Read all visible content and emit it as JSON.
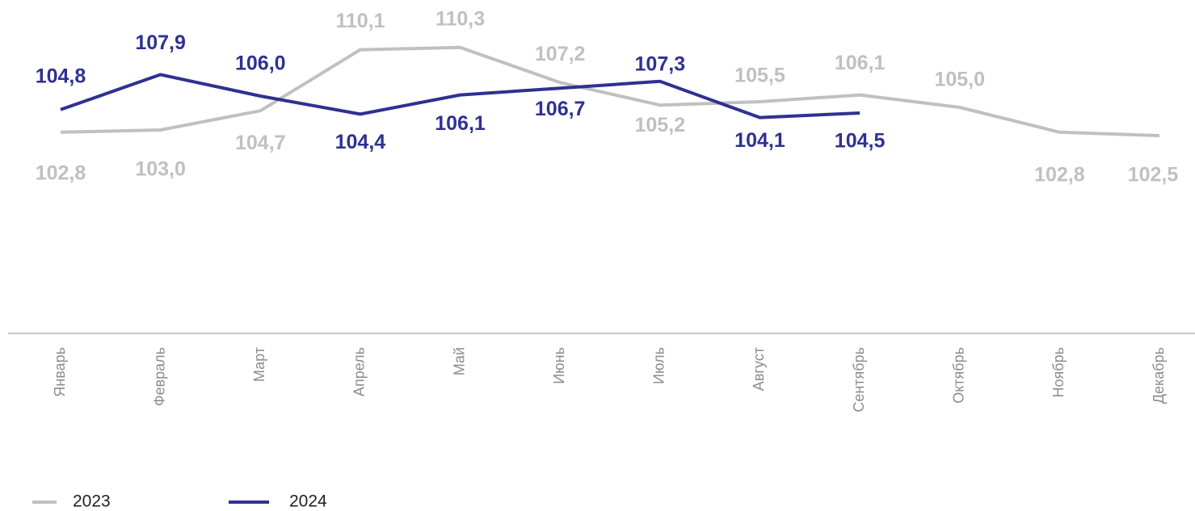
{
  "chart_data": {
    "type": "line",
    "categories": [
      "Январь",
      "Февраль",
      "Март",
      "Апрель",
      "Май",
      "Июнь",
      "Июль",
      "Август",
      "Сентябрь",
      "Октябрь",
      "Ноябрь",
      "Декабрь"
    ],
    "series": [
      {
        "name": "2023",
        "color": "#c0c0c0",
        "values": [
          102.8,
          103.0,
          104.7,
          110.1,
          110.3,
          107.2,
          105.2,
          105.5,
          106.1,
          105.0,
          102.8,
          102.5
        ],
        "value_labels": [
          "102,8",
          "103,0",
          "104,7",
          "110,1",
          "110,3",
          "107,2",
          "105,2",
          "105,5",
          "106,1",
          "105,0",
          "102,8",
          "102,5"
        ]
      },
      {
        "name": "2024",
        "color": "#2e3192",
        "values": [
          104.8,
          107.9,
          106.0,
          104.4,
          106.1,
          106.7,
          107.3,
          104.1,
          104.5,
          null,
          null,
          null
        ],
        "value_labels": [
          "104,8",
          "107,9",
          "106,0",
          "104,4",
          "106,1",
          "106,7",
          "107,3",
          "104,1",
          "104,5",
          null,
          null,
          null
        ]
      }
    ],
    "ylim": [
      85,
      112
    ]
  }
}
